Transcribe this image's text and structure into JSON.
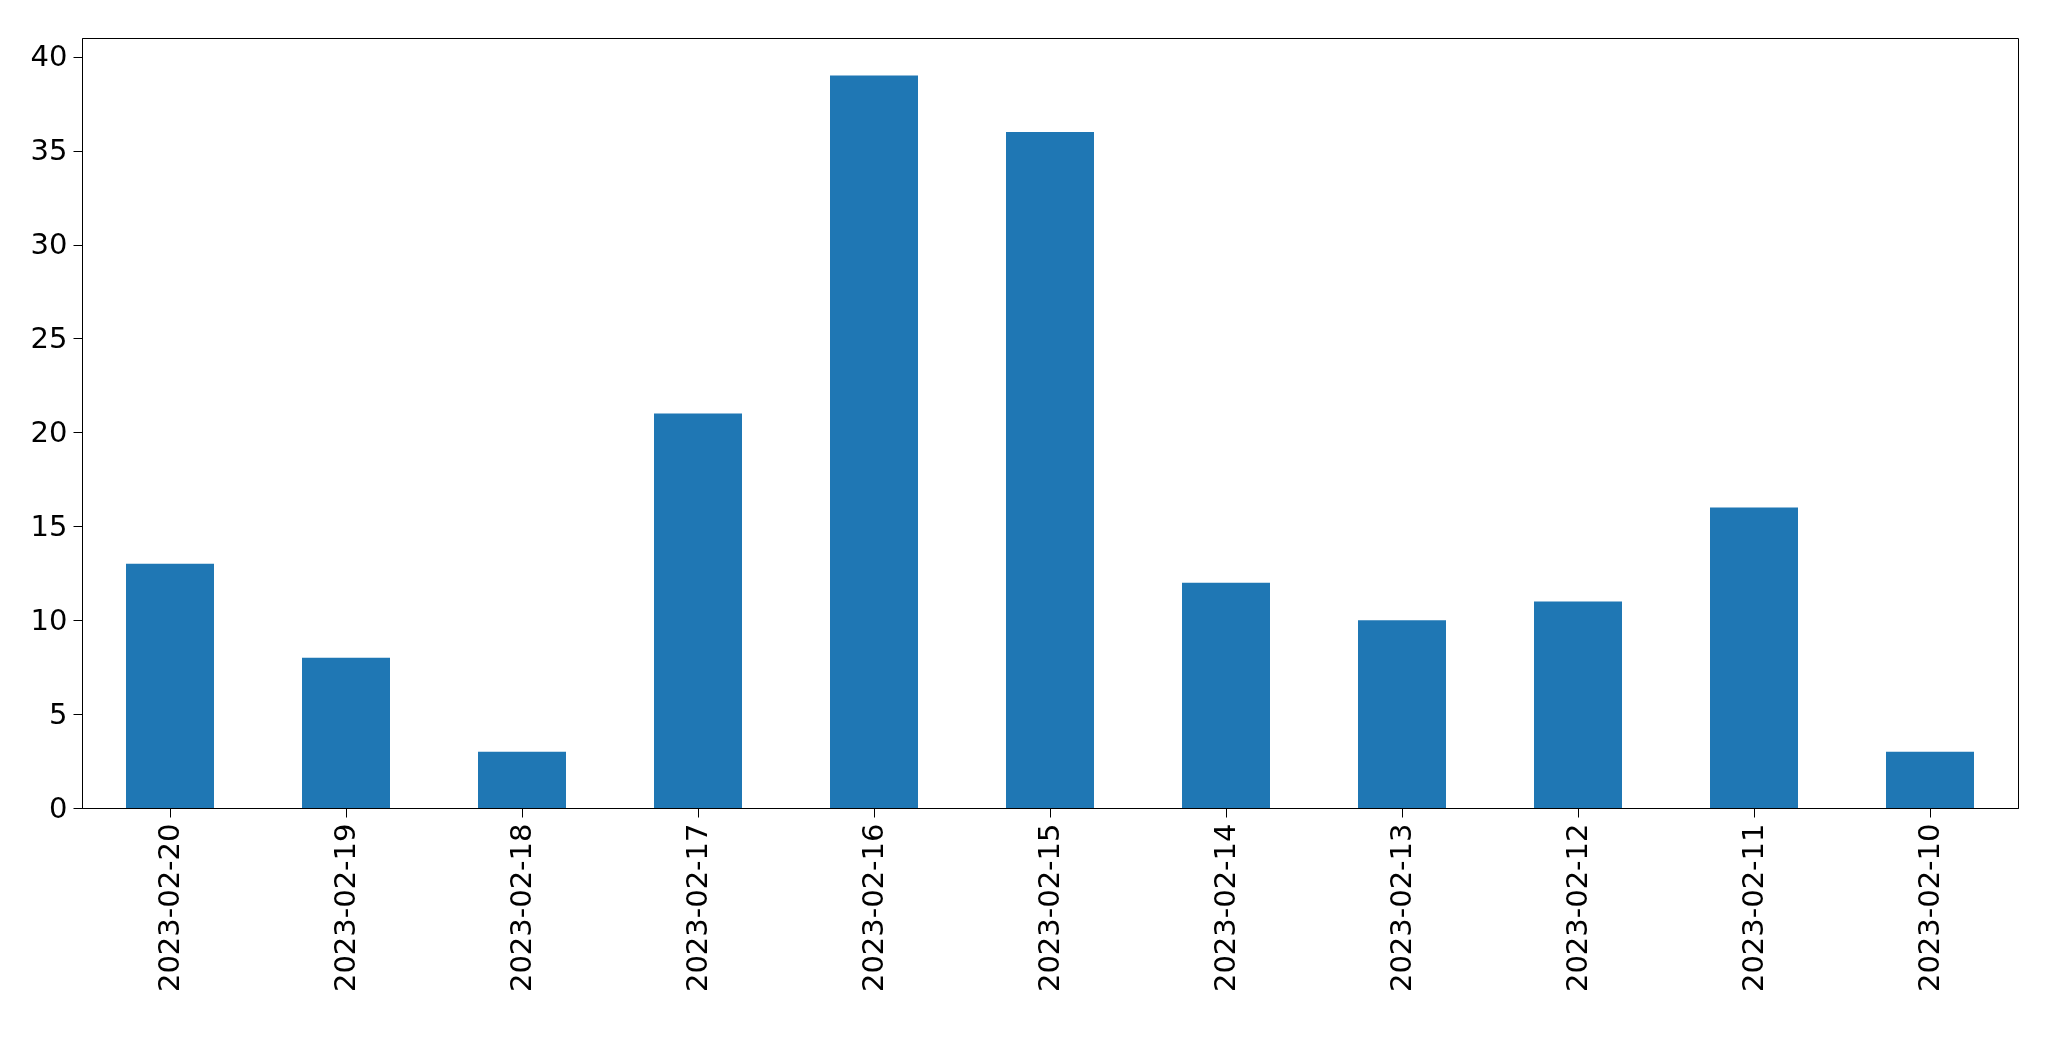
{
  "chart_data": {
    "type": "bar",
    "categories": [
      "2023-02-20",
      "2023-02-19",
      "2023-02-18",
      "2023-02-17",
      "2023-02-16",
      "2023-02-15",
      "2023-02-14",
      "2023-02-13",
      "2023-02-12",
      "2023-02-11",
      "2023-02-10"
    ],
    "values": [
      13,
      8,
      3,
      21,
      39,
      36,
      12,
      10,
      11,
      16,
      3
    ],
    "color": "#1f77b4",
    "ylim": [
      0,
      41
    ],
    "yticks": [
      0,
      5,
      10,
      15,
      20,
      25,
      30,
      35,
      40
    ],
    "grid": false
  }
}
